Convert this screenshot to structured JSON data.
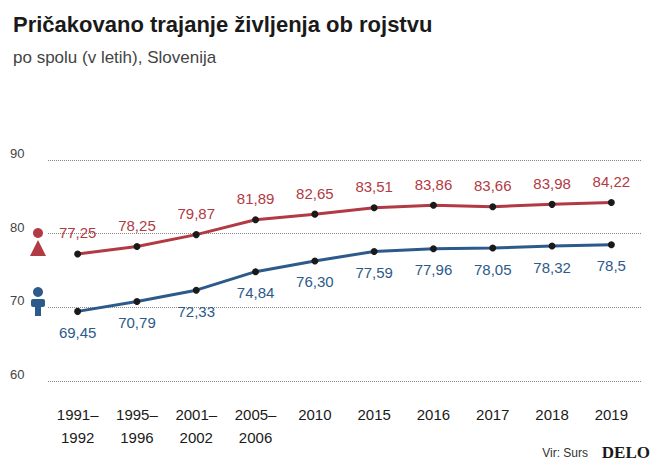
{
  "chart_data": {
    "type": "line",
    "title": "Pričakovano trajanje življenja ob rojstvu",
    "subtitle": "po spolu (v letih), Slovenija",
    "annotations": [
      "Vir: Surs",
      "DELO"
    ],
    "categories": [
      "1991–\n1992",
      "1995–\n1996",
      "2001–\n2002",
      "2005–\n2006",
      "2010",
      "2015",
      "2016",
      "2017",
      "2018",
      "2019"
    ],
    "series": [
      {
        "color": "#b23a44",
        "marker": "circle",
        "values": [
          77.25,
          78.25,
          79.87,
          81.89,
          82.65,
          83.51,
          83.86,
          83.66,
          83.98,
          84.22
        ],
        "value_labels": [
          "77,25",
          "78,25",
          "79,87",
          "81,89",
          "82,65",
          "83,51",
          "83,86",
          "83,66",
          "83,98",
          "84,22"
        ]
      },
      {
        "color": "#2c5a8a",
        "marker": "circle",
        "values": [
          69.45,
          70.79,
          72.33,
          74.84,
          76.3,
          77.59,
          77.96,
          78.05,
          78.32,
          78.5
        ],
        "value_labels": [
          "69,45",
          "70,79",
          "72,33",
          "74,84",
          "76,30",
          "77,59",
          "77,96",
          "78,05",
          "78,32",
          "78,5"
        ]
      }
    ],
    "ylim": [
      60,
      90
    ],
    "yticks": [
      60,
      70,
      80,
      90
    ],
    "grid": true,
    "data_labels": true
  }
}
